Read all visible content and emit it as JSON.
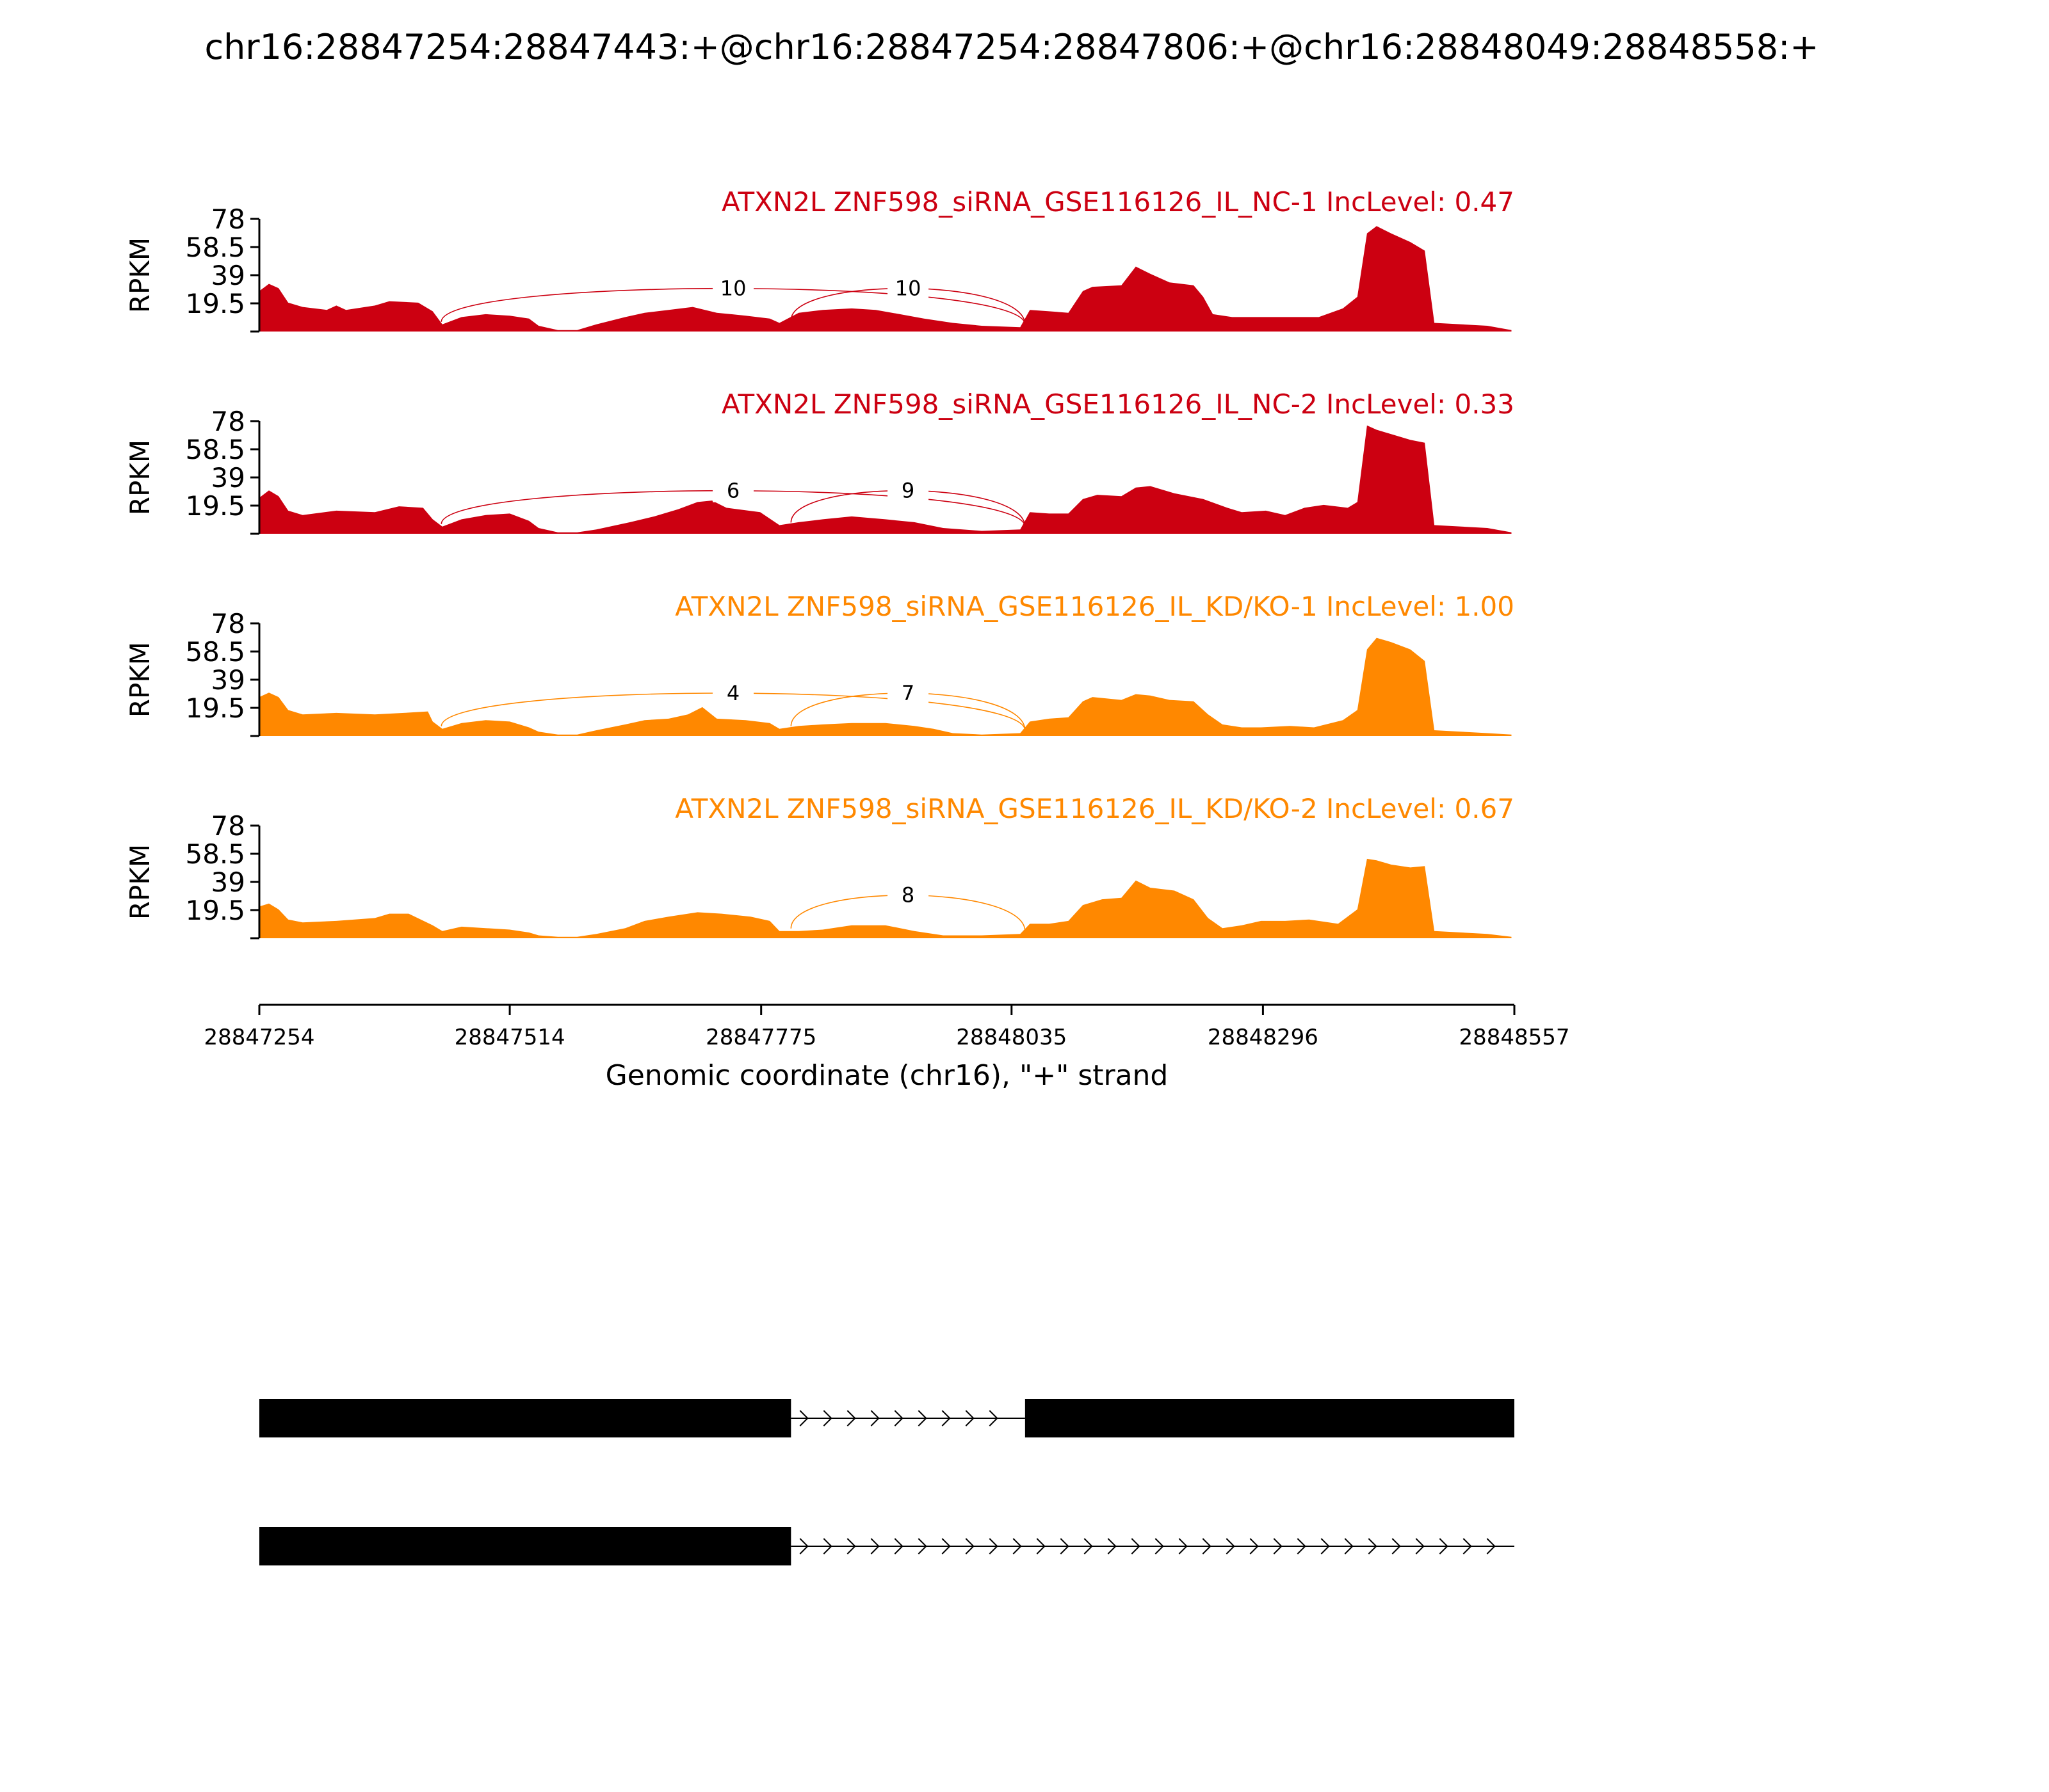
{
  "title": "chr16:28847254:28847443:+@chr16:28847254:28847806:+@chr16:28848049:28848558:+",
  "chart_data": {
    "type": "area",
    "ylabel": "RPKM",
    "xlabel": "Genomic coordinate (chr16), \"+\" strand",
    "xlim": [
      28847254,
      28848557
    ],
    "ylim": [
      0,
      78
    ],
    "yticks": [
      "78",
      "58.5",
      "39",
      "19.5"
    ],
    "xticks": [
      "28847254",
      "28847514",
      "28847775",
      "28848035",
      "28848296",
      "28848557"
    ],
    "tracks": [
      {
        "label": "ATXN2L ZNF598_siRNA_GSE116126_IL_NC-1 IncLevel: 0.47",
        "color": "#cc0011",
        "coverage": [
          [
            28847254,
            28
          ],
          [
            28847264,
            33
          ],
          [
            28847274,
            30
          ],
          [
            28847284,
            20
          ],
          [
            28847299,
            17
          ],
          [
            28847324,
            15
          ],
          [
            28847334,
            18
          ],
          [
            28847344,
            15
          ],
          [
            28847374,
            18
          ],
          [
            28847389,
            21
          ],
          [
            28847419,
            20
          ],
          [
            28847434,
            14
          ],
          [
            28847444,
            5
          ],
          [
            28847464,
            10
          ],
          [
            28847489,
            12
          ],
          [
            28847514,
            11
          ],
          [
            28847534,
            9
          ],
          [
            28847544,
            4
          ],
          [
            28847564,
            1
          ],
          [
            28847584,
            1
          ],
          [
            28847604,
            5
          ],
          [
            28847634,
            10
          ],
          [
            28847654,
            13
          ],
          [
            28847679,
            15
          ],
          [
            28847704,
            17
          ],
          [
            28847729,
            13
          ],
          [
            28847759,
            11
          ],
          [
            28847784,
            9
          ],
          [
            28847794,
            6
          ],
          [
            28847814,
            13
          ],
          [
            28847839,
            15
          ],
          [
            28847869,
            16
          ],
          [
            28847894,
            15
          ],
          [
            28847919,
            12
          ],
          [
            28847944,
            9
          ],
          [
            28847974,
            6
          ],
          [
            28848004,
            4
          ],
          [
            28848044,
            3
          ],
          [
            28848054,
            15
          ],
          [
            28848074,
            14
          ],
          [
            28848094,
            13
          ],
          [
            28848109,
            28
          ],
          [
            28848119,
            31
          ],
          [
            28848149,
            32
          ],
          [
            28848164,
            45
          ],
          [
            28848179,
            40
          ],
          [
            28848199,
            34
          ],
          [
            28848224,
            32
          ],
          [
            28848234,
            24
          ],
          [
            28848244,
            12
          ],
          [
            28848264,
            10
          ],
          [
            28848294,
            10
          ],
          [
            28848324,
            10
          ],
          [
            28848354,
            10
          ],
          [
            28848379,
            16
          ],
          [
            28848394,
            24
          ],
          [
            28848404,
            68
          ],
          [
            28848414,
            73
          ],
          [
            28848429,
            68
          ],
          [
            28848449,
            62
          ],
          [
            28848464,
            56
          ],
          [
            28848474,
            6
          ],
          [
            28848529,
            4
          ],
          [
            28848554,
            1
          ]
        ],
        "junctions": [
          {
            "start": 28847443,
            "end": 28848049,
            "count": "10"
          },
          {
            "start": 28847806,
            "end": 28848049,
            "count": "10"
          }
        ]
      },
      {
        "label": "ATXN2L ZNF598_siRNA_GSE116126_IL_NC-2 IncLevel: 0.33",
        "color": "#cc0011",
        "coverage": [
          [
            28847254,
            25
          ],
          [
            28847264,
            30
          ],
          [
            28847274,
            26
          ],
          [
            28847284,
            16
          ],
          [
            28847299,
            13
          ],
          [
            28847334,
            16
          ],
          [
            28847374,
            15
          ],
          [
            28847399,
            19
          ],
          [
            28847424,
            18
          ],
          [
            28847434,
            10
          ],
          [
            28847444,
            5
          ],
          [
            28847464,
            10
          ],
          [
            28847489,
            13
          ],
          [
            28847514,
            14
          ],
          [
            28847534,
            9
          ],
          [
            28847544,
            4
          ],
          [
            28847564,
            1
          ],
          [
            28847584,
            1
          ],
          [
            28847604,
            3
          ],
          [
            28847639,
            8
          ],
          [
            28847664,
            12
          ],
          [
            28847689,
            17
          ],
          [
            28847709,
            22
          ],
          [
            28847724,
            23
          ],
          [
            28847739,
            18
          ],
          [
            28847774,
            15
          ],
          [
            28847794,
            6
          ],
          [
            28847814,
            8
          ],
          [
            28847839,
            10
          ],
          [
            28847869,
            12
          ],
          [
            28847904,
            10
          ],
          [
            28847934,
            8
          ],
          [
            28847964,
            4
          ],
          [
            28848004,
            2
          ],
          [
            28848044,
            3
          ],
          [
            28848054,
            15
          ],
          [
            28848074,
            14
          ],
          [
            28848094,
            14
          ],
          [
            28848109,
            24
          ],
          [
            28848124,
            27
          ],
          [
            28848149,
            26
          ],
          [
            28848164,
            32
          ],
          [
            28848179,
            33
          ],
          [
            28848204,
            28
          ],
          [
            28848234,
            24
          ],
          [
            28848259,
            18
          ],
          [
            28848274,
            15
          ],
          [
            28848299,
            16
          ],
          [
            28848319,
            13
          ],
          [
            28848339,
            18
          ],
          [
            28848359,
            20
          ],
          [
            28848384,
            18
          ],
          [
            28848394,
            22
          ],
          [
            28848404,
            75
          ],
          [
            28848414,
            72
          ],
          [
            28848429,
            69
          ],
          [
            28848449,
            65
          ],
          [
            28848464,
            63
          ],
          [
            28848474,
            6
          ],
          [
            28848529,
            4
          ],
          [
            28848554,
            1
          ]
        ],
        "junctions": [
          {
            "start": 28847443,
            "end": 28848049,
            "count": "6"
          },
          {
            "start": 28847806,
            "end": 28848049,
            "count": "9"
          }
        ]
      },
      {
        "label": "ATXN2L ZNF598_siRNA_GSE116126_IL_KD/KO-1 IncLevel: 1.00",
        "color": "#ff8800",
        "coverage": [
          [
            28847254,
            27
          ],
          [
            28847264,
            30
          ],
          [
            28847274,
            27
          ],
          [
            28847284,
            18
          ],
          [
            28847299,
            15
          ],
          [
            28847334,
            16
          ],
          [
            28847374,
            15
          ],
          [
            28847404,
            16
          ],
          [
            28847429,
            17
          ],
          [
            28847434,
            10
          ],
          [
            28847444,
            5
          ],
          [
            28847464,
            9
          ],
          [
            28847489,
            11
          ],
          [
            28847514,
            10
          ],
          [
            28847534,
            6
          ],
          [
            28847544,
            3
          ],
          [
            28847564,
            1
          ],
          [
            28847584,
            1
          ],
          [
            28847604,
            4
          ],
          [
            28847634,
            8
          ],
          [
            28847654,
            11
          ],
          [
            28847679,
            12
          ],
          [
            28847699,
            15
          ],
          [
            28847714,
            20
          ],
          [
            28847729,
            12
          ],
          [
            28847759,
            11
          ],
          [
            28847784,
            9
          ],
          [
            28847794,
            5
          ],
          [
            28847814,
            7
          ],
          [
            28847839,
            8
          ],
          [
            28847869,
            9
          ],
          [
            28847904,
            9
          ],
          [
            28847934,
            7
          ],
          [
            28847954,
            5
          ],
          [
            28847974,
            2
          ],
          [
            28848004,
            1
          ],
          [
            28848044,
            2
          ],
          [
            28848054,
            10
          ],
          [
            28848074,
            12
          ],
          [
            28848094,
            13
          ],
          [
            28848109,
            24
          ],
          [
            28848119,
            27
          ],
          [
            28848149,
            25
          ],
          [
            28848164,
            29
          ],
          [
            28848179,
            28
          ],
          [
            28848199,
            25
          ],
          [
            28848224,
            24
          ],
          [
            28848239,
            15
          ],
          [
            28848254,
            8
          ],
          [
            28848274,
            6
          ],
          [
            28848294,
            6
          ],
          [
            28848324,
            7
          ],
          [
            28848349,
            6
          ],
          [
            28848379,
            11
          ],
          [
            28848394,
            18
          ],
          [
            28848404,
            60
          ],
          [
            28848414,
            68
          ],
          [
            28848429,
            65
          ],
          [
            28848449,
            60
          ],
          [
            28848464,
            52
          ],
          [
            28848474,
            4
          ],
          [
            28848529,
            2
          ],
          [
            28848554,
            1
          ]
        ],
        "junctions": [
          {
            "start": 28847443,
            "end": 28848049,
            "count": "4"
          },
          {
            "start": 28847806,
            "end": 28848049,
            "count": "7"
          }
        ]
      },
      {
        "label": "ATXN2L ZNF598_siRNA_GSE116126_IL_KD/KO-2 IncLevel: 0.67",
        "color": "#ff8800",
        "coverage": [
          [
            28847254,
            22
          ],
          [
            28847264,
            24
          ],
          [
            28847274,
            20
          ],
          [
            28847284,
            13
          ],
          [
            28847299,
            11
          ],
          [
            28847334,
            12
          ],
          [
            28847374,
            14
          ],
          [
            28847389,
            17
          ],
          [
            28847409,
            17
          ],
          [
            28847434,
            9
          ],
          [
            28847444,
            5
          ],
          [
            28847464,
            8
          ],
          [
            28847489,
            7
          ],
          [
            28847514,
            6
          ],
          [
            28847534,
            4
          ],
          [
            28847544,
            2
          ],
          [
            28847564,
            1
          ],
          [
            28847584,
            1
          ],
          [
            28847604,
            3
          ],
          [
            28847634,
            7
          ],
          [
            28847654,
            12
          ],
          [
            28847679,
            15
          ],
          [
            28847709,
            18
          ],
          [
            28847734,
            17
          ],
          [
            28847764,
            15
          ],
          [
            28847784,
            12
          ],
          [
            28847794,
            5
          ],
          [
            28847814,
            5
          ],
          [
            28847839,
            6
          ],
          [
            28847869,
            9
          ],
          [
            28847904,
            9
          ],
          [
            28847934,
            5
          ],
          [
            28847964,
            2
          ],
          [
            28848004,
            2
          ],
          [
            28848044,
            3
          ],
          [
            28848054,
            10
          ],
          [
            28848074,
            10
          ],
          [
            28848094,
            12
          ],
          [
            28848109,
            23
          ],
          [
            28848129,
            27
          ],
          [
            28848149,
            28
          ],
          [
            28848164,
            40
          ],
          [
            28848179,
            35
          ],
          [
            28848204,
            33
          ],
          [
            28848224,
            27
          ],
          [
            28848239,
            14
          ],
          [
            28848254,
            7
          ],
          [
            28848274,
            9
          ],
          [
            28848294,
            12
          ],
          [
            28848319,
            12
          ],
          [
            28848344,
            13
          ],
          [
            28848374,
            10
          ],
          [
            28848394,
            20
          ],
          [
            28848404,
            55
          ],
          [
            28848414,
            54
          ],
          [
            28848429,
            51
          ],
          [
            28848449,
            49
          ],
          [
            28848464,
            50
          ],
          [
            28848474,
            5
          ],
          [
            28848529,
            3
          ],
          [
            28848554,
            1
          ]
        ],
        "junctions": [
          {
            "start": 28847806,
            "end": 28848049,
            "count": "8"
          }
        ]
      }
    ],
    "transcripts": [
      {
        "exons": [
          [
            28847254,
            28847806
          ],
          [
            28848049,
            28848557
          ]
        ],
        "introns": [
          [
            28847806,
            28848049
          ]
        ]
      },
      {
        "exons": [
          [
            28847254,
            28847806
          ]
        ],
        "introns": [
          [
            28847806,
            28848557
          ]
        ]
      }
    ]
  }
}
